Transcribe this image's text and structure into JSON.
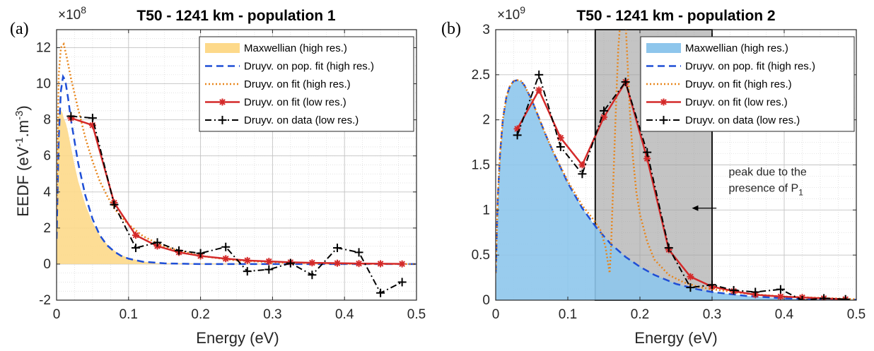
{
  "chart_data": [
    {
      "type": "line",
      "panel_label": "(a)",
      "title": "T50 - 1241 km - population 1",
      "xlabel": "Energy (eV)",
      "ylabel_main": "EEDF (eV",
      "ylabel_sup1": "-1",
      "ylabel_mid": ".m",
      "ylabel_sup2": "-3",
      "ylabel_end": ")",
      "multiplier_base": "×10",
      "multiplier_exp": "8",
      "xlim": [
        0,
        0.5
      ],
      "ylim": [
        -2,
        13
      ],
      "xticks": [
        0,
        0.1,
        0.2,
        0.3,
        0.4,
        0.5
      ],
      "xtick_labels": [
        "0",
        "0.1",
        "0.2",
        "0.3",
        "0.4",
        "0.5"
      ],
      "yticks": [
        -2,
        0,
        2,
        4,
        6,
        8,
        10,
        12
      ],
      "ytick_labels": [
        "-2",
        "0",
        "2",
        "4",
        "6",
        "8",
        "10",
        "12"
      ],
      "grid": true,
      "legend_position": "top-right",
      "series": [
        {
          "name": "Maxwellian (high res.)",
          "style": "area",
          "color": "#FDD98A",
          "x": [
            0,
            0.002,
            0.005,
            0.008,
            0.01,
            0.013,
            0.016,
            0.02,
            0.025,
            0.03,
            0.04,
            0.05,
            0.06,
            0.07,
            0.08,
            0.09,
            0.1,
            0.12,
            0.14,
            0.5
          ],
          "y": [
            0,
            8.0,
            8.6,
            8.4,
            8.1,
            7.8,
            7.3,
            6.5,
            5.5,
            4.6,
            3.3,
            2.3,
            1.6,
            1.1,
            0.75,
            0.5,
            0.33,
            0.14,
            0.05,
            0
          ]
        },
        {
          "name": "Druyv. on pop. fit (high res.)",
          "style": "dash",
          "color": "#1F4FD6",
          "x": [
            0,
            0.003,
            0.006,
            0.009,
            0.012,
            0.016,
            0.02,
            0.025,
            0.03,
            0.04,
            0.05,
            0.06,
            0.07,
            0.08,
            0.09,
            0.1,
            0.12,
            0.15,
            0.2,
            0.3,
            0.4,
            0.5
          ],
          "y": [
            1.4,
            7.0,
            9.6,
            10.4,
            10.2,
            9.2,
            8.0,
            6.8,
            5.6,
            3.8,
            2.5,
            1.6,
            1.05,
            0.7,
            0.45,
            0.3,
            0.13,
            0.04,
            0,
            0,
            0,
            0
          ]
        },
        {
          "name": "Druyv. on fit (high res.)",
          "style": "dot",
          "color": "#E8851A",
          "x": [
            0,
            0.003,
            0.006,
            0.01,
            0.014,
            0.02,
            0.03,
            0.04,
            0.05,
            0.06,
            0.07,
            0.08,
            0.09,
            0.1,
            0.12,
            0.15,
            0.2,
            0.25,
            0.3,
            0.4,
            0.5
          ],
          "y": [
            3.0,
            10.5,
            12.0,
            12.2,
            11.5,
            10.3,
            8.6,
            7.0,
            5.7,
            4.6,
            3.8,
            3.1,
            2.6,
            2.2,
            1.55,
            0.95,
            0.45,
            0.2,
            0.1,
            0.02,
            0
          ]
        },
        {
          "name": "Druyv. on fit (low res.)",
          "style": "solid-star",
          "color": "#D42A2A",
          "x": [
            0.02,
            0.05,
            0.08,
            0.11,
            0.14,
            0.17,
            0.2,
            0.235,
            0.265,
            0.295,
            0.325,
            0.355,
            0.39,
            0.42,
            0.45,
            0.48
          ],
          "y": [
            8.1,
            7.7,
            3.4,
            1.6,
            1.0,
            0.65,
            0.45,
            0.3,
            0.2,
            0.15,
            0.1,
            0.07,
            0.05,
            0.03,
            0.02,
            0.01
          ]
        },
        {
          "name": "Druyv. on data (low res.)",
          "style": "dashdot-plus",
          "color": "#000000",
          "x": [
            0.02,
            0.05,
            0.08,
            0.11,
            0.14,
            0.17,
            0.2,
            0.235,
            0.265,
            0.295,
            0.325,
            0.355,
            0.39,
            0.42,
            0.45,
            0.48
          ],
          "y": [
            8.2,
            8.1,
            3.3,
            0.9,
            1.2,
            0.75,
            0.6,
            0.95,
            -0.4,
            -0.3,
            0.05,
            -0.6,
            0.9,
            0.65,
            -1.6,
            -1.0
          ]
        }
      ]
    },
    {
      "type": "line",
      "panel_label": "(b)",
      "title": "T50 - 1241 km - population 2",
      "xlabel": "Energy (eV)",
      "multiplier_base": "×10",
      "multiplier_exp": "9",
      "xlim": [
        0,
        0.5
      ],
      "ylim": [
        0,
        3
      ],
      "xticks": [
        0,
        0.1,
        0.2,
        0.3,
        0.4,
        0.5
      ],
      "xtick_labels": [
        "0",
        "0.1",
        "0.2",
        "0.3",
        "0.4",
        "0.5"
      ],
      "yticks": [
        0,
        0.5,
        1,
        1.5,
        2,
        2.5,
        3
      ],
      "ytick_labels": [
        "0",
        "0.5",
        "1",
        "1.5",
        "2",
        "2.5",
        "3"
      ],
      "grid": true,
      "legend_position": "top-right",
      "shaded_region": {
        "x0": 0.138,
        "x1": 0.3,
        "color": "#A0A0A0"
      },
      "annotation": {
        "line1": "peak due to the",
        "line2_main": "presence of P",
        "line2_sub": "1",
        "arrow_to_x": 0.272,
        "y": 1.02
      },
      "series": [
        {
          "name": "Maxwellian (high res.)",
          "style": "area",
          "color": "#8EC6EC",
          "x": [
            0,
            0.003,
            0.006,
            0.01,
            0.015,
            0.02,
            0.025,
            0.03,
            0.035,
            0.04,
            0.05,
            0.06,
            0.07,
            0.08,
            0.1,
            0.12,
            0.14,
            0.16,
            0.18,
            0.2,
            0.22,
            0.25,
            0.28,
            0.3,
            0.35,
            0.4,
            0.45,
            0.5
          ],
          "y": [
            0,
            1.1,
            1.6,
            2.0,
            2.25,
            2.37,
            2.42,
            2.44,
            2.43,
            2.38,
            2.22,
            2.02,
            1.82,
            1.64,
            1.3,
            1.02,
            0.8,
            0.62,
            0.48,
            0.37,
            0.28,
            0.18,
            0.12,
            0.09,
            0.045,
            0.02,
            0.01,
            0.005
          ]
        },
        {
          "name": "Druyv. on pop. fit (high res.)",
          "style": "dash",
          "color": "#1F4FD6",
          "x": [
            0,
            0.003,
            0.006,
            0.01,
            0.015,
            0.02,
            0.025,
            0.03,
            0.035,
            0.04,
            0.05,
            0.06,
            0.07,
            0.08,
            0.1,
            0.12,
            0.14,
            0.16,
            0.18,
            0.2,
            0.22,
            0.25,
            0.28,
            0.3,
            0.35,
            0.4,
            0.45,
            0.5
          ],
          "y": [
            0.3,
            1.15,
            1.62,
            2.01,
            2.26,
            2.38,
            2.43,
            2.44,
            2.43,
            2.38,
            2.22,
            2.02,
            1.82,
            1.64,
            1.3,
            1.02,
            0.8,
            0.62,
            0.48,
            0.37,
            0.28,
            0.18,
            0.12,
            0.09,
            0.045,
            0.02,
            0.01,
            0.005
          ]
        },
        {
          "name": "Druyv. on fit (high res.)",
          "style": "dot",
          "color": "#E8851A",
          "x": [
            0,
            0.003,
            0.006,
            0.01,
            0.015,
            0.02,
            0.025,
            0.03,
            0.035,
            0.04,
            0.05,
            0.06,
            0.07,
            0.08,
            0.1,
            0.12,
            0.135,
            0.145,
            0.152,
            0.156,
            0.158,
            0.16,
            0.163,
            0.167,
            0.17,
            0.173,
            0.176,
            0.18,
            0.183,
            0.186,
            0.19,
            0.195,
            0.2,
            0.21,
            0.22,
            0.24,
            0.26,
            0.28,
            0.3,
            0.35,
            0.4,
            0.5
          ],
          "y": [
            0.3,
            1.15,
            1.62,
            2.01,
            2.26,
            2.38,
            2.43,
            2.44,
            2.43,
            2.38,
            2.22,
            2.02,
            1.82,
            1.64,
            1.32,
            1.05,
            0.9,
            0.78,
            0.6,
            0.4,
            0.3,
            0.6,
            1.3,
            2.2,
            2.8,
            3.1,
            3.3,
            3.1,
            2.6,
            2.1,
            1.6,
            1.2,
            0.95,
            0.65,
            0.45,
            0.28,
            0.2,
            0.15,
            0.12,
            0.07,
            0.04,
            0.01
          ]
        },
        {
          "name": "Druyv. on fit (low res.)",
          "style": "solid-star",
          "color": "#D42A2A",
          "x": [
            0.03,
            0.06,
            0.09,
            0.12,
            0.15,
            0.18,
            0.21,
            0.24,
            0.27,
            0.3,
            0.33,
            0.36,
            0.395,
            0.425,
            0.455,
            0.485
          ],
          "y": [
            1.9,
            2.33,
            1.8,
            1.5,
            2.03,
            2.42,
            1.57,
            0.56,
            0.26,
            0.15,
            0.1,
            0.06,
            0.04,
            0.03,
            0.02,
            0.01
          ]
        },
        {
          "name": "Druyv. on data (low res.)",
          "style": "dashdot-plus",
          "color": "#000000",
          "x": [
            0.03,
            0.06,
            0.09,
            0.12,
            0.15,
            0.18,
            0.21,
            0.24,
            0.27,
            0.3,
            0.33,
            0.36,
            0.395,
            0.425,
            0.455,
            0.485
          ],
          "y": [
            1.83,
            2.5,
            1.7,
            1.4,
            2.1,
            2.42,
            1.64,
            0.58,
            0.14,
            0.17,
            0.11,
            0.09,
            0.12,
            0.0,
            0.02,
            0.01
          ]
        }
      ]
    }
  ]
}
